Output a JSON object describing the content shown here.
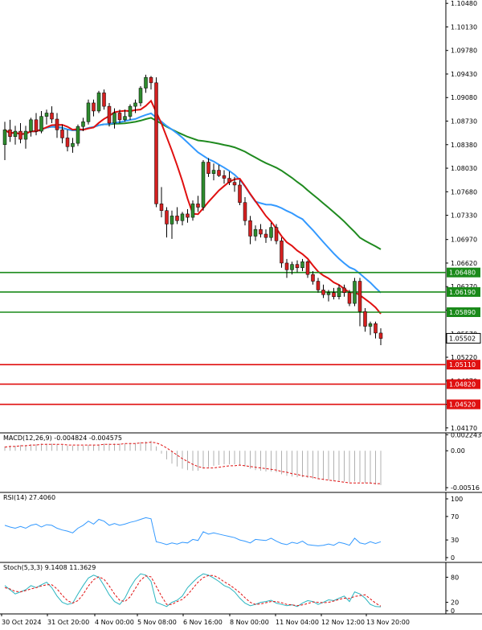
{
  "colors": {
    "bull": "#2e8b2e",
    "bear": "#d42020",
    "ma_fast": "#e01010",
    "ma_mid": "#3399ff",
    "ma_slow": "#1f8a1f",
    "resistance": "#1a8a1a",
    "support": "#e01010",
    "macd_hist": "#b0b0b0",
    "macd_signal": "#e01010",
    "rsi": "#3399ff",
    "stoch_main": "#2ab5c0",
    "stoch_signal": "#e01010",
    "price_box": "#000000"
  },
  "chart_data": [
    {
      "type": "candlestick",
      "title": "",
      "y_ticks": [
        "1.10480",
        "1.10130",
        "1.09780",
        "1.09430",
        "1.09080",
        "1.08730",
        "1.08380",
        "1.08030",
        "1.07680",
        "1.07330",
        "1.06970",
        "1.06620",
        "1.06270",
        "1.05920",
        "1.05570",
        "1.05220",
        "1.04870",
        "1.04520",
        "1.04170"
      ],
      "ylim": [
        1.0412,
        1.1053
      ],
      "current_price": "1.05502",
      "levels": [
        {
          "label": "1.06480",
          "value": 1.0648,
          "kind": "resistance"
        },
        {
          "label": "1.06190",
          "value": 1.0619,
          "kind": "resistance"
        },
        {
          "label": "1.05890",
          "value": 1.0589,
          "kind": "resistance"
        },
        {
          "label": "1.05110",
          "value": 1.0511,
          "kind": "support"
        },
        {
          "label": "1.04820",
          "value": 1.0482,
          "kind": "support"
        },
        {
          "label": "1.04520",
          "value": 1.0452,
          "kind": "support"
        }
      ],
      "candles": [
        [
          1.0838,
          1.0872,
          1.0815,
          1.086
        ],
        [
          1.086,
          1.0875,
          1.0842,
          1.085
        ],
        [
          1.085,
          1.0866,
          1.0838,
          1.0858
        ],
        [
          1.0858,
          1.087,
          1.084,
          1.0846
        ],
        [
          1.0846,
          1.0866,
          1.0832,
          1.0858
        ],
        [
          1.0858,
          1.0878,
          1.085,
          1.0875
        ],
        [
          1.0875,
          1.0885,
          1.0852,
          1.0858
        ],
        [
          1.0858,
          1.0888,
          1.0855,
          1.088
        ],
        [
          1.088,
          1.089,
          1.0868,
          1.0885
        ],
        [
          1.0885,
          1.0895,
          1.087,
          1.0876
        ],
        [
          1.0876,
          1.0885,
          1.0848,
          1.086
        ],
        [
          1.086,
          1.0868,
          1.084,
          1.0848
        ],
        [
          1.0848,
          1.086,
          1.0828,
          1.0835
        ],
        [
          1.0835,
          1.0848,
          1.0826,
          1.084
        ],
        [
          1.084,
          1.0868,
          1.0836,
          1.0865
        ],
        [
          1.0865,
          1.0878,
          1.0858,
          1.0872
        ],
        [
          1.0872,
          1.0905,
          1.0868,
          1.09
        ],
        [
          1.09,
          1.0905,
          1.088,
          1.0888
        ],
        [
          1.0888,
          1.0918,
          1.0885,
          1.0915
        ],
        [
          1.0915,
          1.092,
          1.089,
          1.0895
        ],
        [
          1.0895,
          1.09,
          1.0865,
          1.087
        ],
        [
          1.087,
          1.0892,
          1.0862,
          1.0885
        ],
        [
          1.0885,
          1.089,
          1.087,
          1.0875
        ],
        [
          1.0875,
          1.089,
          1.0872,
          1.088
        ],
        [
          1.088,
          1.0898,
          1.0875,
          1.0895
        ],
        [
          1.0895,
          1.0905,
          1.0885,
          1.09
        ],
        [
          1.09,
          1.0925,
          1.0895,
          1.0922
        ],
        [
          1.0922,
          1.0942,
          1.0915,
          1.0938
        ],
        [
          1.0938,
          1.094,
          1.092,
          1.093
        ],
        [
          1.093,
          1.0938,
          1.0745,
          1.075
        ],
        [
          1.075,
          1.0775,
          1.073,
          1.074
        ],
        [
          1.074,
          1.0745,
          1.07,
          1.072
        ],
        [
          1.072,
          1.074,
          1.0698,
          1.0732
        ],
        [
          1.0732,
          1.0745,
          1.072,
          1.0725
        ],
        [
          1.0725,
          1.0738,
          1.0718,
          1.0735
        ],
        [
          1.0735,
          1.0742,
          1.0722,
          1.073
        ],
        [
          1.073,
          1.0755,
          1.0725,
          1.075
        ],
        [
          1.075,
          1.0762,
          1.0738,
          1.0745
        ],
        [
          1.0745,
          1.0815,
          1.074,
          1.0812
        ],
        [
          1.0812,
          1.0818,
          1.079,
          1.0795
        ],
        [
          1.0795,
          1.081,
          1.0785,
          1.08
        ],
        [
          1.08,
          1.0808,
          1.079,
          1.0792
        ],
        [
          1.0792,
          1.08,
          1.078,
          1.0788
        ],
        [
          1.0788,
          1.0798,
          1.0778,
          1.0782
        ],
        [
          1.0782,
          1.079,
          1.0768,
          1.0778
        ],
        [
          1.0778,
          1.0785,
          1.0748,
          1.0752
        ],
        [
          1.0752,
          1.076,
          1.0718,
          1.0725
        ],
        [
          1.0725,
          1.0732,
          1.069,
          1.0702
        ],
        [
          1.0702,
          1.0718,
          1.0695,
          1.0712
        ],
        [
          1.0712,
          1.072,
          1.07,
          1.0705
        ],
        [
          1.0705,
          1.0712,
          1.0692,
          1.07
        ],
        [
          1.07,
          1.0722,
          1.0695,
          1.0715
        ],
        [
          1.0715,
          1.072,
          1.069,
          1.0695
        ],
        [
          1.0695,
          1.07,
          1.0655,
          1.0662
        ],
        [
          1.0662,
          1.0668,
          1.064,
          1.0652
        ],
        [
          1.0652,
          1.0664,
          1.0645,
          1.066
        ],
        [
          1.066,
          1.0666,
          1.0648,
          1.0655
        ],
        [
          1.0655,
          1.0668,
          1.065,
          1.0664
        ],
        [
          1.0664,
          1.0666,
          1.064,
          1.0645
        ],
        [
          1.0645,
          1.065,
          1.063,
          1.0635
        ],
        [
          1.0635,
          1.064,
          1.0618,
          1.0622
        ],
        [
          1.0622,
          1.063,
          1.061,
          1.0615
        ],
        [
          1.0615,
          1.0622,
          1.0605,
          1.0618
        ],
        [
          1.0618,
          1.0625,
          1.0608,
          1.0612
        ],
        [
          1.0612,
          1.063,
          1.0608,
          1.0625
        ],
        [
          1.0625,
          1.063,
          1.0612,
          1.0618
        ],
        [
          1.0618,
          1.0622,
          1.0598,
          1.0602
        ],
        [
          1.0602,
          1.064,
          1.0598,
          1.0635
        ],
        [
          1.0635,
          1.064,
          1.0568,
          1.059
        ],
        [
          1.059,
          1.0595,
          1.056,
          1.0568
        ],
        [
          1.0568,
          1.0575,
          1.0555,
          1.0572
        ],
        [
          1.0572,
          1.0575,
          1.055,
          1.0558
        ],
        [
          1.0558,
          1.0565,
          1.054,
          1.055
        ]
      ]
    },
    {
      "type": "bar",
      "title": "MACD(12,26,9) -0.004824 -0.004575",
      "y_ticks": [
        "0.002243",
        "0.00",
        "-0.00516"
      ],
      "ylim": [
        -0.0056,
        0.0025
      ],
      "histogram": [
        0.0006,
        0.0007,
        0.0007,
        0.0008,
        0.0008,
        0.0009,
        0.0009,
        0.001,
        0.001,
        0.001,
        0.0009,
        0.0008,
        0.0007,
        0.0007,
        0.0007,
        0.0007,
        0.0008,
        0.0008,
        0.0009,
        0.001,
        0.001,
        0.001,
        0.001,
        0.001,
        0.0011,
        0.0011,
        0.0012,
        0.0013,
        0.0014,
        0.0006,
        -0.0004,
        -0.0012,
        -0.0018,
        -0.0022,
        -0.0025,
        -0.0027,
        -0.0028,
        -0.0028,
        -0.0025,
        -0.0023,
        -0.0021,
        -0.002,
        -0.0019,
        -0.0019,
        -0.0019,
        -0.002,
        -0.0022,
        -0.0025,
        -0.0027,
        -0.0028,
        -0.0029,
        -0.0029,
        -0.003,
        -0.0033,
        -0.0035,
        -0.0036,
        -0.0037,
        -0.0037,
        -0.0038,
        -0.0039,
        -0.004,
        -0.0041,
        -0.0041,
        -0.0042,
        -0.0042,
        -0.0043,
        -0.0044,
        -0.0043,
        -0.0044,
        -0.0045,
        -0.0046,
        -0.0047,
        -0.0048
      ],
      "signal": [
        0.0005,
        0.0006,
        0.0006,
        0.0007,
        0.0007,
        0.0008,
        0.0008,
        0.0009,
        0.0009,
        0.0009,
        0.0009,
        0.0009,
        0.0008,
        0.0008,
        0.0008,
        0.0008,
        0.0008,
        0.0008,
        0.0008,
        0.0009,
        0.0009,
        0.0009,
        0.0009,
        0.001,
        0.001,
        0.001,
        0.0011,
        0.0011,
        0.0012,
        0.0011,
        0.0008,
        0.0004,
        -0.0001,
        -0.0006,
        -0.0011,
        -0.0015,
        -0.0019,
        -0.0022,
        -0.0024,
        -0.0024,
        -0.0024,
        -0.0023,
        -0.0022,
        -0.0021,
        -0.0021,
        -0.002,
        -0.0021,
        -0.0022,
        -0.0023,
        -0.0024,
        -0.0025,
        -0.0026,
        -0.0027,
        -0.0029,
        -0.003,
        -0.0032,
        -0.0033,
        -0.0035,
        -0.0036,
        -0.0037,
        -0.0039,
        -0.004,
        -0.0041,
        -0.0042,
        -0.0043,
        -0.0044,
        -0.0045,
        -0.0045,
        -0.0045,
        -0.0045,
        -0.0045,
        -0.0046,
        -0.0046
      ]
    },
    {
      "type": "line",
      "title": "RSI(14) 27.4060",
      "y_ticks": [
        "100",
        "70",
        "30",
        "0"
      ],
      "ylim": [
        0,
        100
      ],
      "values": [
        55,
        52,
        50,
        53,
        50,
        55,
        57,
        52,
        56,
        55,
        50,
        47,
        45,
        42,
        50,
        55,
        62,
        57,
        65,
        62,
        55,
        58,
        55,
        57,
        60,
        62,
        65,
        68,
        66,
        27,
        25,
        22,
        25,
        23,
        26,
        25,
        31,
        29,
        44,
        40,
        42,
        40,
        38,
        36,
        34,
        30,
        28,
        25,
        31,
        30,
        29,
        33,
        28,
        24,
        22,
        26,
        24,
        28,
        22,
        21,
        20,
        21,
        23,
        21,
        26,
        24,
        21,
        33,
        25,
        23,
        27,
        24,
        27
      ]
    },
    {
      "type": "line",
      "title": "Stoch(5,3,3) 9.1408 11.3629",
      "y_ticks": [
        "80",
        "20",
        "0"
      ],
      "ylim": [
        0,
        100
      ],
      "main": [
        60,
        50,
        40,
        45,
        50,
        60,
        55,
        62,
        68,
        55,
        35,
        20,
        15,
        18,
        40,
        60,
        78,
        85,
        80,
        60,
        38,
        22,
        15,
        30,
        55,
        75,
        88,
        85,
        70,
        20,
        15,
        10,
        20,
        25,
        35,
        55,
        68,
        80,
        88,
        85,
        78,
        70,
        60,
        55,
        45,
        30,
        18,
        12,
        15,
        20,
        22,
        25,
        18,
        15,
        12,
        14,
        10,
        18,
        24,
        22,
        15,
        20,
        26,
        24,
        30,
        35,
        22,
        45,
        40,
        30,
        15,
        10,
        9
      ],
      "signal": [
        55,
        52,
        46,
        45,
        48,
        52,
        55,
        59,
        62,
        62,
        52,
        37,
        24,
        18,
        24,
        39,
        59,
        74,
        81,
        75,
        59,
        40,
        25,
        22,
        33,
        53,
        73,
        83,
        81,
        58,
        35,
        15,
        15,
        22,
        27,
        38,
        53,
        68,
        79,
        84,
        84,
        78,
        69,
        62,
        53,
        43,
        31,
        20,
        15,
        16,
        19,
        22,
        22,
        19,
        15,
        14,
        12,
        14,
        17,
        21,
        20,
        19,
        20,
        23,
        27,
        30,
        29,
        34,
        36,
        38,
        28,
        18,
        11
      ]
    }
  ],
  "x_axis": {
    "labels": [
      "30 Oct 2024",
      "31 Oct 20:00",
      "4 Nov 00:00",
      "5 Nov 08:00",
      "6 Nov 16:00",
      "8 Nov 00:00",
      "11 Nov 04:00",
      "12 Nov 12:00",
      "13 Nov 20:00"
    ]
  }
}
